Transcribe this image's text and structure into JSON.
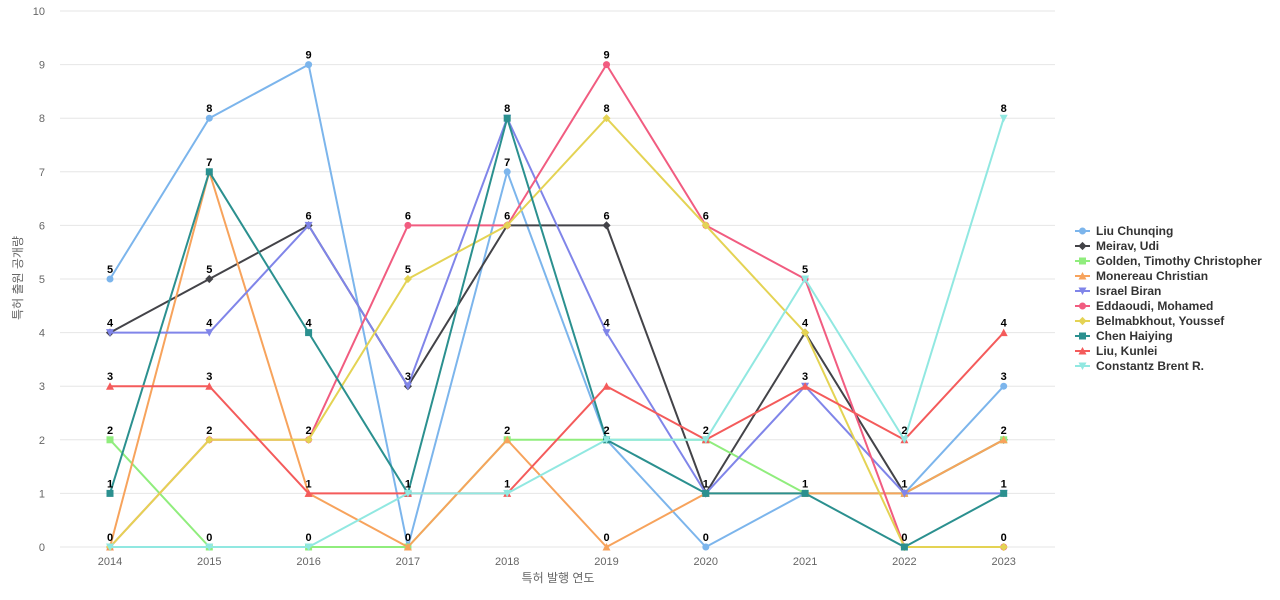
{
  "chart_data": {
    "type": "line",
    "title": "",
    "xlabel": "특허 발행 연도",
    "ylabel": "특허 출원 공개량",
    "x": [
      "2014",
      "2015",
      "2016",
      "2017",
      "2018",
      "2019",
      "2020",
      "2021",
      "2022",
      "2023"
    ],
    "yticks": [
      "0",
      "1",
      "2",
      "3",
      "4",
      "5",
      "6",
      "7",
      "8",
      "9",
      "10"
    ],
    "ylim": [
      0,
      10
    ],
    "grid": true,
    "legend_position": "right",
    "series": [
      {
        "name": "Liu Chunqing",
        "color": "#7cb5ec",
        "marker": "circle",
        "values": [
          5,
          8,
          9,
          0,
          7,
          2,
          0,
          1,
          1,
          3
        ]
      },
      {
        "name": "Meirav, Udi",
        "color": "#434348",
        "marker": "diamond",
        "values": [
          4,
          5,
          6,
          3,
          6,
          6,
          1,
          4,
          1,
          2
        ]
      },
      {
        "name": "Golden, Timothy Christopher",
        "color": "#90ed7d",
        "marker": "square",
        "values": [
          2,
          0,
          0,
          0,
          2,
          2,
          2,
          1,
          1,
          2
        ]
      },
      {
        "name": "Monereau Christian",
        "color": "#f7a35c",
        "marker": "triangle",
        "values": [
          0,
          7,
          1,
          0,
          2,
          0,
          1,
          1,
          1,
          2
        ]
      },
      {
        "name": "Israel Biran",
        "color": "#8085e9",
        "marker": "triangle-down",
        "values": [
          4,
          4,
          6,
          3,
          8,
          4,
          1,
          3,
          1,
          1
        ]
      },
      {
        "name": "Eddaoudi, Mohamed",
        "color": "#f15c80",
        "marker": "circle",
        "values": [
          0,
          2,
          2,
          6,
          6,
          9,
          6,
          5,
          0,
          0
        ]
      },
      {
        "name": "Belmabkhout, Youssef",
        "color": "#e4d354",
        "marker": "diamond",
        "values": [
          0,
          2,
          2,
          5,
          6,
          8,
          6,
          4,
          0,
          0
        ]
      },
      {
        "name": "Chen Haiying",
        "color": "#2b908f",
        "marker": "square",
        "values": [
          1,
          7,
          4,
          1,
          8,
          2,
          1,
          1,
          0,
          1
        ]
      },
      {
        "name": "Liu, Kunlei",
        "color": "#f45b5b",
        "marker": "triangle",
        "values": [
          3,
          3,
          1,
          1,
          1,
          3,
          2,
          3,
          2,
          4
        ]
      },
      {
        "name": "Constantz Brent R.",
        "color": "#91e8e1",
        "marker": "triangle-down",
        "values": [
          0,
          0,
          0,
          1,
          1,
          2,
          2,
          5,
          2,
          8
        ]
      }
    ],
    "data_labels": [
      {
        "x": "2014",
        "values": [
          "5",
          "4",
          "3",
          "2",
          "1",
          "0"
        ]
      },
      {
        "x": "2015",
        "values": [
          "8",
          "7",
          "5",
          "4",
          "3",
          "2",
          "0"
        ]
      },
      {
        "x": "2016",
        "values": [
          "9",
          "6",
          "4",
          "2",
          "1",
          "0"
        ]
      },
      {
        "x": "2017",
        "values": [
          "6",
          "5",
          "3",
          "1",
          "0"
        ]
      },
      {
        "x": "2018",
        "values": [
          "8",
          "7",
          "6",
          "2",
          "1"
        ]
      },
      {
        "x": "2019",
        "values": [
          "9",
          "8",
          "6",
          "4",
          "2",
          "0"
        ]
      },
      {
        "x": "2020",
        "values": [
          "6",
          "2",
          "1",
          "0"
        ]
      },
      {
        "x": "2021",
        "values": [
          "5",
          "4",
          "3",
          "1"
        ]
      },
      {
        "x": "2022",
        "values": [
          "2",
          "1",
          "0"
        ]
      },
      {
        "x": "2023",
        "values": [
          "8",
          "4",
          "3",
          "2",
          "1",
          "0"
        ]
      }
    ]
  }
}
